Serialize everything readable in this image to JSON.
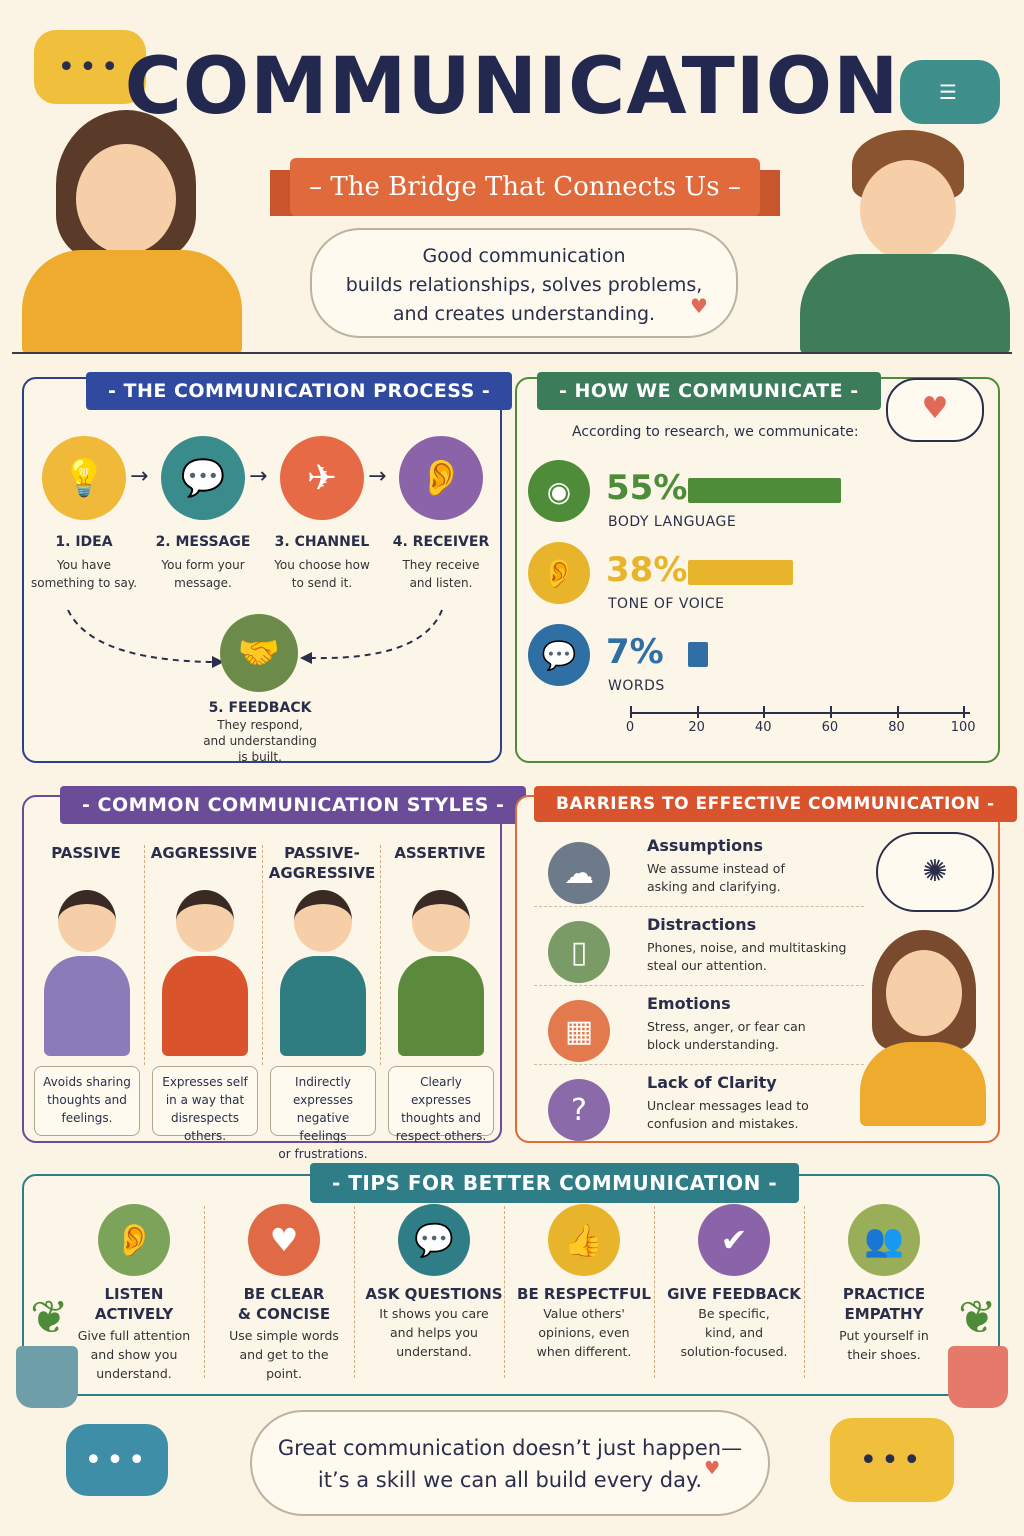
{
  "header": {
    "title": "COMMUNICATION",
    "subtitle": "– The Bridge That Connects Us –",
    "intro_line1": "Good communication",
    "intro_line2": "builds relationships, solves problems,",
    "intro_line3": "and creates understanding."
  },
  "process": {
    "title": "- THE COMMUNICATION PROCESS -",
    "steps": [
      {
        "label": "1. IDEA",
        "desc1": "You have",
        "desc2": "something to say.",
        "color": "#f0b93a",
        "icon": "lightbulb-icon"
      },
      {
        "label": "2. MESSAGE",
        "desc1": "You form your",
        "desc2": "message.",
        "color": "#3a8c8c",
        "icon": "speech-bubble-icon"
      },
      {
        "label": "3. CHANNEL",
        "desc1": "You choose how",
        "desc2": "to send it.",
        "color": "#e56a45",
        "icon": "paper-plane-icon"
      },
      {
        "label": "4. RECEIVER",
        "desc1": "They receive",
        "desc2": "and listen.",
        "color": "#8a63a8",
        "icon": "ear-icon"
      }
    ],
    "feedback": {
      "label": "5. FEEDBACK",
      "desc1": "They respond,",
      "desc2": "and understanding",
      "desc3": "is built.",
      "color": "#6c8a4a",
      "icon": "handshake-icon"
    }
  },
  "how": {
    "title": "- HOW WE COMMUNICATE -",
    "intro": "According to research, we communicate:",
    "axis_ticks": [
      "0",
      "20",
      "40",
      "60",
      "80",
      "100"
    ]
  },
  "chart_data": {
    "type": "bar",
    "categories": [
      "BODY LANGUAGE",
      "TONE OF VOICE",
      "WORDS"
    ],
    "values": [
      55,
      38,
      7
    ],
    "value_labels": [
      "55%",
      "38%",
      "7%"
    ],
    "xlim": [
      0,
      100
    ],
    "colors": [
      "#4f8c3a",
      "#e8b42c",
      "#2f6fa3"
    ],
    "icons": [
      "eye-icon",
      "ear-icon",
      "speech-bubble-icon"
    ]
  },
  "styles": {
    "title": "- COMMON COMMUNICATION STYLES -",
    "items": [
      {
        "name": "PASSIVE",
        "d1": "Avoids sharing",
        "d2": "thoughts and",
        "d3": "feelings.",
        "color": "#8b7bb8"
      },
      {
        "name": "AGGRESSIVE",
        "d1": "Expresses self",
        "d2": "in a way that",
        "d3": "disrespects others.",
        "color": "#d9542c"
      },
      {
        "name": "PASSIVE-",
        "name2": "AGGRESSIVE",
        "d1": "Indirectly expresses",
        "d2": "negative feelings",
        "d3": "or frustrations.",
        "color": "#2f7d80"
      },
      {
        "name": "ASSERTIVE",
        "d1": "Clearly expresses",
        "d2": "thoughts and",
        "d3": "respect others.",
        "color": "#5c8a3c"
      }
    ]
  },
  "barriers": {
    "title": "BARRIERS TO EFFECTIVE COMMUNICATION -",
    "items": [
      {
        "name": "Assumptions",
        "d1": "We assume instead of",
        "d2": "asking and clarifying.",
        "icon": "rain-cloud-icon",
        "color": "#6d7a8a"
      },
      {
        "name": "Distractions",
        "d1": "Phones, noise, and multitasking",
        "d2": "steal our attention.",
        "icon": "phone-icon",
        "color": "#7a9a66"
      },
      {
        "name": "Emotions",
        "d1": "Stress, anger, or fear can",
        "d2": "block understanding.",
        "icon": "brick-wall-icon",
        "color": "#e27a4e"
      },
      {
        "name": "Lack of Clarity",
        "d1": "Unclear messages lead to",
        "d2": "confusion and mistakes.",
        "icon": "question-icon",
        "color": "#8a6aa8"
      }
    ]
  },
  "tips": {
    "title": "- TIPS FOR BETTER COMMUNICATION -",
    "items": [
      {
        "t1": "LISTEN",
        "t2": "ACTIVELY",
        "d1": "Give full attention",
        "d2": "and show you",
        "d3": "understand.",
        "color": "#7ca35a",
        "icon": "ear-icon",
        "glyph": "𝟋"
      },
      {
        "t1": "BE CLEAR",
        "t2": "& CONCISE",
        "d1": "Use simple words",
        "d2": "and get to the",
        "d3": "point.",
        "color": "#e06a45",
        "icon": "heart-icon"
      },
      {
        "t1": "ASK QUESTIONS",
        "t2": "",
        "d1": "It shows you care",
        "d2": "and helps you",
        "d3": "understand.",
        "color": "#2f7d86",
        "icon": "speech-bubble-icon"
      },
      {
        "t1": "BE RESPECTFUL",
        "t2": "",
        "d1": "Value others'",
        "d2": "opinions, even",
        "d3": "when different.",
        "color": "#e8b42c",
        "icon": "thumbs-up-icon"
      },
      {
        "t1": "GIVE FEEDBACK",
        "t2": "",
        "d1": "Be specific,",
        "d2": "kind, and",
        "d3": "solution-focused.",
        "color": "#8a63a8",
        "icon": "checkmark-icon"
      },
      {
        "t1": "PRACTICE",
        "t2": "EMPATHY",
        "d1": "Put yourself in",
        "d2": "their shoes.",
        "d3": "",
        "color": "#9aae5a",
        "icon": "people-icon"
      }
    ]
  },
  "footer": {
    "line1": "Great communication doesn’t just happen—",
    "line2": "it’s a skill we can all build every day."
  }
}
